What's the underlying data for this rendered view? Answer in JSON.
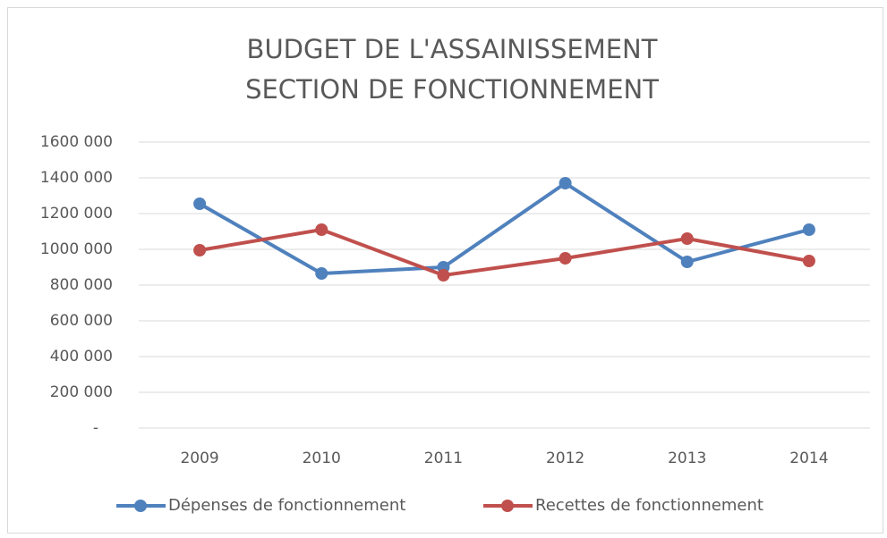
{
  "chart_data": {
    "type": "line",
    "title": [
      "BUDGET DE L'ASSAINISSEMENT",
      "SECTION DE FONCTIONNEMENT"
    ],
    "categories": [
      "2009",
      "2010",
      "2011",
      "2012",
      "2013",
      "2014"
    ],
    "series": [
      {
        "name": "Dépenses de fonctionnement",
        "color": "#4f81bd",
        "values": [
          1255000,
          865000,
          900000,
          1370000,
          930000,
          1110000
        ]
      },
      {
        "name": "Recettes de fonctionnement",
        "color": "#c0504d",
        "values": [
          995000,
          1110000,
          855000,
          950000,
          1060000,
          935000
        ]
      }
    ],
    "ylim": [
      0,
      1600000
    ],
    "yticks": [
      {
        "value": 0,
        "label": "-"
      },
      {
        "value": 200000,
        "label": "200 000"
      },
      {
        "value": 400000,
        "label": "400 000"
      },
      {
        "value": 600000,
        "label": "600 000"
      },
      {
        "value": 800000,
        "label": "800 000"
      },
      {
        "value": 1000000,
        "label": "1000 000"
      },
      {
        "value": 1200000,
        "label": "1200 000"
      },
      {
        "value": 1400000,
        "label": "1400 000"
      },
      {
        "value": 1600000,
        "label": "1600 000"
      }
    ],
    "grid": true,
    "legend": "bottom"
  }
}
